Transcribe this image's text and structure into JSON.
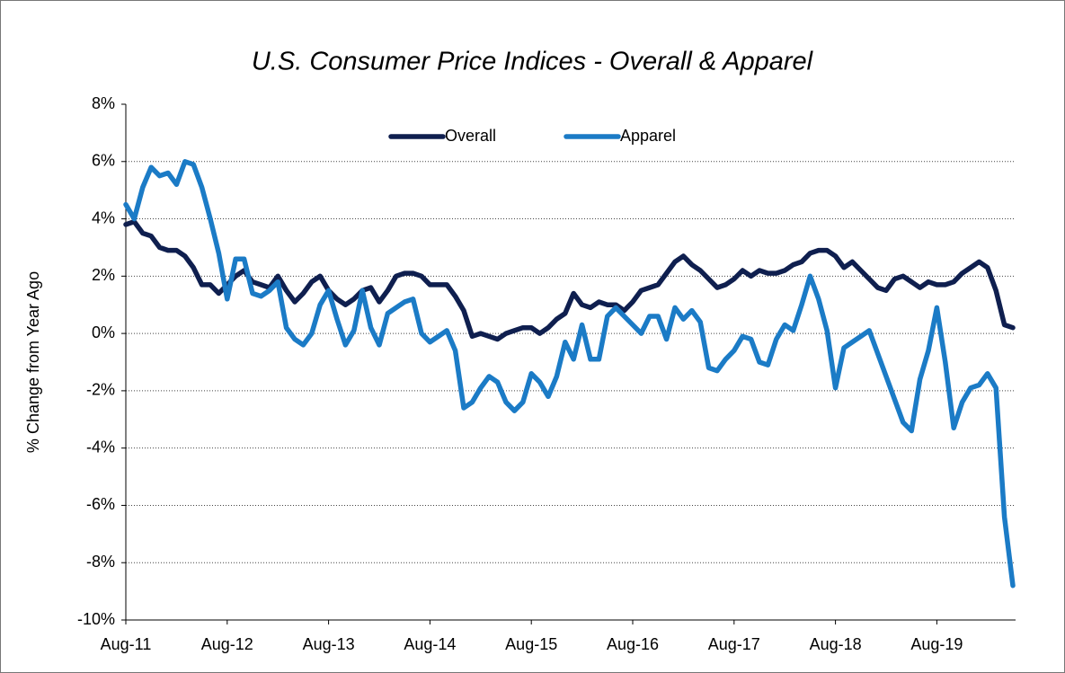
{
  "chart_data": {
    "type": "line",
    "title": "U.S. Consumer Price Indices - Overall & Apparel",
    "y_label": "% Change from Year Ago",
    "categories": [
      "Aug-11",
      null,
      null,
      null,
      null,
      null,
      null,
      null,
      null,
      null,
      null,
      null,
      "Aug-12",
      null,
      null,
      null,
      null,
      null,
      null,
      null,
      null,
      null,
      null,
      null,
      "Aug-13",
      null,
      null,
      null,
      null,
      null,
      null,
      null,
      null,
      null,
      null,
      null,
      "Aug-14",
      null,
      null,
      null,
      null,
      null,
      null,
      null,
      null,
      null,
      null,
      null,
      "Aug-15",
      null,
      null,
      null,
      null,
      null,
      null,
      null,
      null,
      null,
      null,
      null,
      "Aug-16",
      null,
      null,
      null,
      null,
      null,
      null,
      null,
      null,
      null,
      null,
      null,
      "Aug-17",
      null,
      null,
      null,
      null,
      null,
      null,
      null,
      null,
      null,
      null,
      null,
      "Aug-18",
      null,
      null,
      null,
      null,
      null,
      null,
      null,
      null,
      null,
      null,
      null,
      "Aug-19",
      null,
      null,
      null,
      null,
      null,
      null,
      null,
      null,
      null
    ],
    "series": [
      {
        "name": "Overall",
        "color": "#0f1f4f",
        "values": [
          3.8,
          3.9,
          3.5,
          3.4,
          3.0,
          2.9,
          2.9,
          2.7,
          2.3,
          1.7,
          1.7,
          1.4,
          1.7,
          2.0,
          2.2,
          1.8,
          1.7,
          1.6,
          2.0,
          1.5,
          1.1,
          1.4,
          1.8,
          2.0,
          1.5,
          1.2,
          1.0,
          1.2,
          1.5,
          1.6,
          1.1,
          1.5,
          2.0,
          2.1,
          2.1,
          2.0,
          1.7,
          1.7,
          1.7,
          1.3,
          0.8,
          -0.1,
          0.0,
          -0.1,
          -0.2,
          0.0,
          0.1,
          0.2,
          0.2,
          0.0,
          0.2,
          0.5,
          0.7,
          1.4,
          1.0,
          0.9,
          1.1,
          1.0,
          1.0,
          0.8,
          1.1,
          1.5,
          1.6,
          1.7,
          2.1,
          2.5,
          2.7,
          2.4,
          2.2,
          1.9,
          1.6,
          1.7,
          1.9,
          2.2,
          2.0,
          2.2,
          2.1,
          2.1,
          2.2,
          2.4,
          2.5,
          2.8,
          2.9,
          2.9,
          2.7,
          2.3,
          2.5,
          2.2,
          1.9,
          1.6,
          1.5,
          1.9,
          2.0,
          1.8,
          1.6,
          1.8,
          1.7,
          1.7,
          1.8,
          2.1,
          2.3,
          2.5,
          2.3,
          1.5,
          0.3,
          0.2
        ]
      },
      {
        "name": "Apparel",
        "color": "#1b7bc6",
        "values": [
          4.5,
          4.0,
          5.1,
          5.8,
          5.5,
          5.6,
          5.2,
          6.0,
          5.9,
          5.1,
          4.0,
          2.8,
          1.2,
          2.6,
          2.6,
          1.4,
          1.3,
          1.5,
          1.8,
          0.2,
          -0.2,
          -0.4,
          0.0,
          1.0,
          1.5,
          0.5,
          -0.4,
          0.1,
          1.5,
          0.2,
          -0.4,
          0.7,
          0.9,
          1.1,
          1.2,
          0.0,
          -0.3,
          -0.1,
          0.1,
          -0.6,
          -2.6,
          -2.4,
          -1.9,
          -1.5,
          -1.7,
          -2.4,
          -2.7,
          -2.4,
          -1.4,
          -1.7,
          -2.2,
          -1.5,
          -0.3,
          -0.9,
          0.3,
          -0.9,
          -0.9,
          0.6,
          0.9,
          0.6,
          0.3,
          0.0,
          0.6,
          0.6,
          -0.2,
          0.9,
          0.5,
          0.8,
          0.4,
          -1.2,
          -1.3,
          -0.9,
          -0.6,
          -0.1,
          -0.2,
          -1.0,
          -1.1,
          -0.2,
          0.3,
          0.1,
          1.0,
          2.0,
          1.2,
          0.1,
          -1.9,
          -0.5,
          -0.3,
          -0.1,
          0.1,
          -0.7,
          -1.5,
          -2.3,
          -3.1,
          -3.4,
          -1.6,
          -0.6,
          0.9,
          -1.0,
          -3.3,
          -2.4,
          -1.9,
          -1.8,
          -1.4,
          -1.9,
          -6.4,
          -8.8
        ]
      }
    ],
    "ylim": [
      -10,
      8
    ],
    "yticks": [
      {
        "value": -10,
        "label": "-10%"
      },
      {
        "value": -8,
        "label": "-8%"
      },
      {
        "value": -6,
        "label": "-6%"
      },
      {
        "value": -4,
        "label": "-4%"
      },
      {
        "value": -2,
        "label": "-2%"
      },
      {
        "value": 0,
        "label": "0%"
      },
      {
        "value": 2,
        "label": "2%"
      },
      {
        "value": 4,
        "label": "4%"
      },
      {
        "value": 6,
        "label": "6%"
      },
      {
        "value": 8,
        "label": "8%"
      }
    ],
    "grid": true,
    "legend": "top"
  }
}
